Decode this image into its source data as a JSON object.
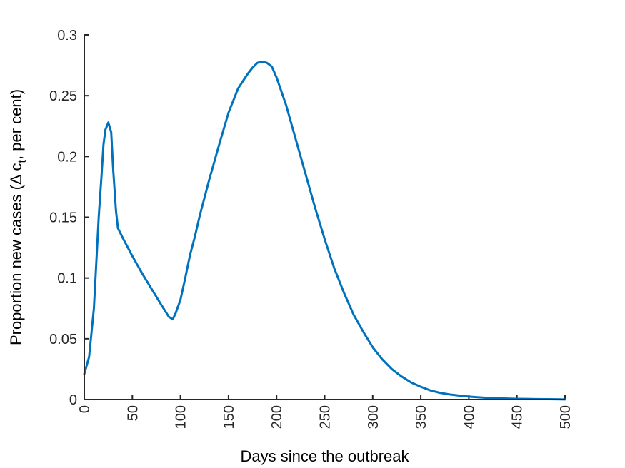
{
  "chart_data": {
    "type": "line",
    "title": "",
    "xlabel": "Days since the outbreak",
    "ylabel_parts": {
      "prefix": "Proportion new cases (Δ c",
      "subscript": "t",
      "suffix": ", per cent)"
    },
    "xlim": [
      0,
      500
    ],
    "ylim": [
      0,
      0.3
    ],
    "x_ticks": [
      0,
      50,
      100,
      150,
      200,
      250,
      300,
      350,
      400,
      450,
      500
    ],
    "x_tick_labels": [
      "0",
      "50",
      "100",
      "150",
      "200",
      "250",
      "300",
      "350",
      "400",
      "450",
      "500"
    ],
    "y_ticks": [
      0,
      0.05,
      0.1,
      0.15,
      0.2,
      0.25,
      0.3
    ],
    "y_tick_labels": [
      "0",
      "0.05",
      "0.1",
      "0.15",
      "0.2",
      "0.25",
      "0.3"
    ],
    "grid": false,
    "legend": "none",
    "series": [
      {
        "color": "#0072BD",
        "x": [
          0,
          5,
          10,
          15,
          18,
          20,
          22,
          25,
          28,
          30,
          33,
          35,
          40,
          50,
          60,
          70,
          80,
          88,
          92,
          95,
          100,
          105,
          110,
          115,
          120,
          130,
          140,
          150,
          160,
          170,
          175,
          180,
          185,
          190,
          195,
          200,
          210,
          220,
          230,
          240,
          250,
          260,
          270,
          280,
          290,
          300,
          310,
          320,
          330,
          340,
          350,
          360,
          370,
          380,
          390,
          400,
          410,
          420,
          430,
          440,
          450,
          460,
          470,
          480,
          490,
          500
        ],
        "y": [
          0.021,
          0.035,
          0.075,
          0.15,
          0.185,
          0.21,
          0.222,
          0.228,
          0.22,
          0.19,
          0.155,
          0.141,
          0.133,
          0.118,
          0.104,
          0.091,
          0.078,
          0.068,
          0.066,
          0.071,
          0.082,
          0.1,
          0.119,
          0.134,
          0.151,
          0.181,
          0.209,
          0.236,
          0.256,
          0.268,
          0.273,
          0.277,
          0.278,
          0.277,
          0.274,
          0.265,
          0.242,
          0.214,
          0.186,
          0.158,
          0.132,
          0.108,
          0.088,
          0.07,
          0.056,
          0.043,
          0.033,
          0.025,
          0.019,
          0.014,
          0.0105,
          0.0075,
          0.0055,
          0.0042,
          0.0032,
          0.0024,
          0.0018,
          0.0013,
          0.001,
          0.0008,
          0.0006,
          0.0005,
          0.0004,
          0.0003,
          0.0002,
          0.0001
        ]
      }
    ]
  }
}
